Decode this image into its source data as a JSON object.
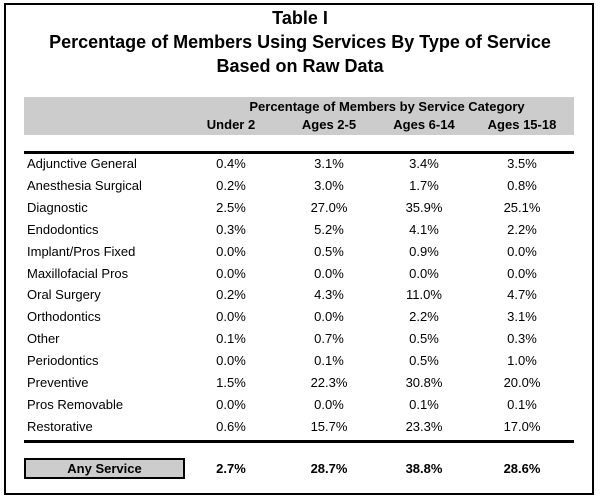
{
  "title": {
    "line1": "Table I",
    "line2": "Percentage of Members Using Services By Type of Service",
    "line3": "Based on Raw Data"
  },
  "header": {
    "category_label": "Percentage of Members by Service Category",
    "columns": [
      "Under 2",
      "Ages 2-5",
      "Ages 6-14",
      "Ages 15-18"
    ]
  },
  "rows": [
    {
      "label": "Adjunctive General",
      "values": [
        "0.4%",
        "3.1%",
        "3.4%",
        "3.5%"
      ]
    },
    {
      "label": "Anesthesia Surgical",
      "values": [
        "0.2%",
        "3.0%",
        "1.7%",
        "0.8%"
      ]
    },
    {
      "label": "Diagnostic",
      "values": [
        "2.5%",
        "27.0%",
        "35.9%",
        "25.1%"
      ]
    },
    {
      "label": "Endodontics",
      "values": [
        "0.3%",
        "5.2%",
        "4.1%",
        "2.2%"
      ]
    },
    {
      "label": "Implant/Pros Fixed",
      "values": [
        "0.0%",
        "0.5%",
        "0.9%",
        "0.0%"
      ]
    },
    {
      "label": "Maxillofacial Pros",
      "values": [
        "0.0%",
        "0.0%",
        "0.0%",
        "0.0%"
      ]
    },
    {
      "label": "Oral Surgery",
      "values": [
        "0.2%",
        "4.3%",
        "11.0%",
        "4.7%"
      ]
    },
    {
      "label": "Orthodontics",
      "values": [
        "0.0%",
        "0.0%",
        "2.2%",
        "3.1%"
      ]
    },
    {
      "label": "Other",
      "values": [
        "0.1%",
        "0.7%",
        "0.5%",
        "0.3%"
      ]
    },
    {
      "label": "Periodontics",
      "values": [
        "0.0%",
        "0.1%",
        "0.5%",
        "1.0%"
      ]
    },
    {
      "label": "Preventive",
      "values": [
        "1.5%",
        "22.3%",
        "30.8%",
        "20.0%"
      ]
    },
    {
      "label": "Pros Removable",
      "values": [
        "0.0%",
        "0.0%",
        "0.1%",
        "0.1%"
      ]
    },
    {
      "label": "Restorative",
      "values": [
        "0.6%",
        "15.7%",
        "23.3%",
        "17.0%"
      ]
    }
  ],
  "summary": {
    "label": "Any Service",
    "values": [
      "2.7%",
      "28.7%",
      "38.8%",
      "28.6%"
    ]
  }
}
